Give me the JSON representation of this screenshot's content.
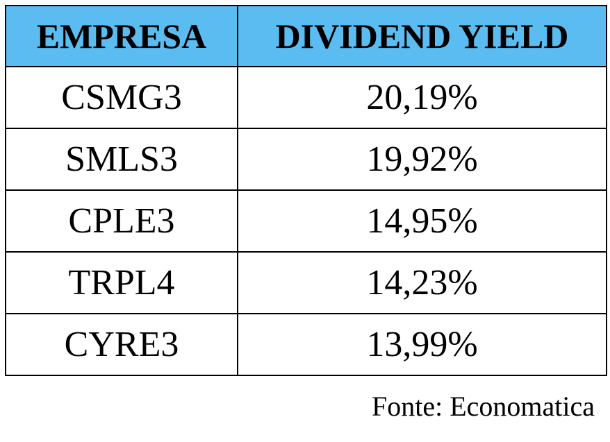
{
  "table": {
    "header_bg": "#5bbcf2",
    "columns": [
      "EMPRESA",
      "DIVIDEND YIELD"
    ],
    "rows": [
      {
        "empresa": "CSMG3",
        "dividend_yield": "20,19%"
      },
      {
        "empresa": "SMLS3",
        "dividend_yield": "19,92%"
      },
      {
        "empresa": "CPLE3",
        "dividend_yield": "14,95%"
      },
      {
        "empresa": "TRPL4",
        "dividend_yield": "14,23%"
      },
      {
        "empresa": "CYRE3",
        "dividend_yield": "13,99%"
      }
    ]
  },
  "source": "Fonte: Economatica"
}
